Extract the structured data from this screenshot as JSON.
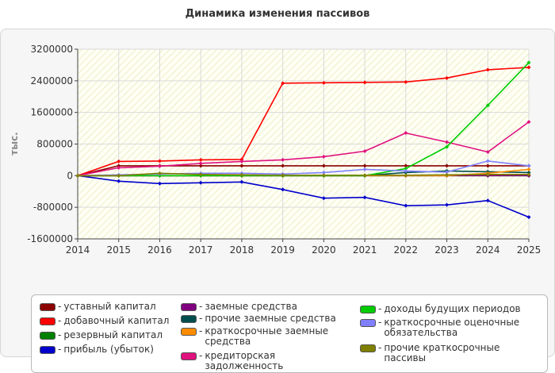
{
  "chart_data": {
    "type": "line",
    "title": "Динамика изменения пассивов",
    "ylabel": "тыс.",
    "xlabel": "",
    "x": [
      2014,
      2015,
      2016,
      2017,
      2018,
      2019,
      2020,
      2021,
      2022,
      2023,
      2024,
      2025
    ],
    "ylim": [
      -1600000,
      3200000
    ],
    "xlim": [
      2014,
      2025
    ],
    "yticks": [
      "3200000",
      "2400000",
      "1600000",
      "800000",
      "0",
      "-800000",
      "-1600000"
    ],
    "ytick_values": [
      3200000,
      2400000,
      1600000,
      800000,
      0,
      -800000,
      -1600000
    ],
    "xticks": [
      "2014",
      "2015",
      "2016",
      "2017",
      "2018",
      "2019",
      "2020",
      "2021",
      "2022",
      "2023",
      "2024",
      "2025"
    ],
    "grid": true,
    "legend_position": "bottom",
    "series": [
      {
        "name": "уставный капитал",
        "color": "#8b0000",
        "values": [
          0,
          250000,
          250000,
          250000,
          250000,
          250000,
          250000,
          250000,
          250000,
          250000,
          250000,
          250000
        ]
      },
      {
        "name": "добавочный капитал",
        "color": "#ff0000",
        "values": [
          0,
          360000,
          370000,
          400000,
          410000,
          2340000,
          2350000,
          2360000,
          2370000,
          2470000,
          2680000,
          2740000
        ]
      },
      {
        "name": "резервный капитал",
        "color": "#008000",
        "values": [
          0,
          0,
          0,
          0,
          0,
          0,
          0,
          0,
          0,
          0,
          0,
          0
        ]
      },
      {
        "name": "прибыль (убыток)",
        "color": "#0000cc",
        "values": [
          0,
          -140000,
          -200000,
          -180000,
          -160000,
          -350000,
          -570000,
          -550000,
          -760000,
          -740000,
          -630000,
          -1050000
        ]
      },
      {
        "name": "заемные средства",
        "color": "#800080",
        "values": [
          0,
          0,
          0,
          0,
          0,
          0,
          0,
          0,
          0,
          0,
          0,
          0
        ]
      },
      {
        "name": "прочие заемные средства",
        "color": "#004d4d",
        "values": [
          0,
          0,
          0,
          0,
          0,
          0,
          0,
          0,
          80000,
          120000,
          100000,
          80000
        ]
      },
      {
        "name": "краткосрочные заемные средства",
        "color": "#ff8c00",
        "values": [
          0,
          0,
          0,
          0,
          0,
          0,
          0,
          0,
          0,
          0,
          60000,
          160000
        ]
      },
      {
        "name": "кредиторская задолженность",
        "color": "#e0117f",
        "values": [
          0,
          200000,
          240000,
          310000,
          360000,
          400000,
          480000,
          620000,
          1080000,
          850000,
          600000,
          1360000
        ]
      },
      {
        "name": "доходы будущих периодов",
        "color": "#00cc00",
        "values": [
          0,
          0,
          0,
          0,
          0,
          0,
          0,
          0,
          180000,
          730000,
          1780000,
          2860000
        ]
      },
      {
        "name": "краткосрочные оценочные обязательства",
        "color": "#8080ff",
        "values": [
          0,
          20000,
          40000,
          60000,
          60000,
          40000,
          80000,
          160000,
          120000,
          90000,
          370000,
          250000
        ]
      },
      {
        "name": "прочие краткосрочные пассивы",
        "color": "#808000",
        "values": [
          0,
          0,
          60000,
          30000,
          20000,
          10000,
          10000,
          10000,
          10000,
          20000,
          30000,
          30000
        ]
      }
    ]
  },
  "legend": {
    "items": [
      {
        "label": "уставный капитал",
        "color": "#8b0000"
      },
      {
        "label": "добавочный капитал",
        "color": "#ff0000"
      },
      {
        "label": "резервный капитал",
        "color": "#008000"
      },
      {
        "label": "прибыль (убыток)",
        "color": "#0000cc"
      },
      {
        "label": "заемные средства",
        "color": "#800080"
      },
      {
        "label": "прочие заемные средства",
        "color": "#004d4d"
      },
      {
        "label": "краткосрочные заемные средства",
        "color": "#ff8c00"
      },
      {
        "label": "кредиторская задолженность",
        "color": "#e0117f"
      },
      {
        "label": "доходы будущих периодов",
        "color": "#00cc00"
      },
      {
        "label": "краткосрочные оценочные обязательства",
        "color": "#8080ff"
      },
      {
        "label": "прочие краткосрочные пассивы",
        "color": "#808000"
      }
    ]
  }
}
